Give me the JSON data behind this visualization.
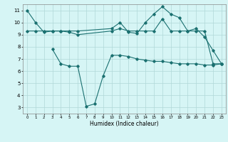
{
  "title": "",
  "xlabel": "Humidex (Indice chaleur)",
  "bg_color": "#d6f5f5",
  "grid_color": "#b0d8d8",
  "line_color": "#1a7070",
  "xlim": [
    -0.5,
    23.5
  ],
  "ylim": [
    2.5,
    11.5
  ],
  "xticks": [
    0,
    1,
    2,
    3,
    4,
    5,
    6,
    7,
    8,
    9,
    10,
    11,
    12,
    13,
    14,
    15,
    16,
    17,
    18,
    19,
    20,
    21,
    22,
    23
  ],
  "yticks": [
    3,
    4,
    5,
    6,
    7,
    8,
    9,
    10,
    11
  ],
  "series": [
    {
      "x": [
        0,
        1,
        2,
        3,
        4,
        5,
        6,
        10,
        11,
        12,
        13,
        14,
        15,
        16,
        17,
        18,
        19,
        20,
        21,
        22,
        23
      ],
      "y": [
        11,
        10,
        9.2,
        9.3,
        9.3,
        9.3,
        9.3,
        9.5,
        10.0,
        9.2,
        9.1,
        10.0,
        10.7,
        11.3,
        10.7,
        10.4,
        9.3,
        9.5,
        8.8,
        7.7,
        6.6
      ]
    },
    {
      "x": [
        0,
        1,
        2,
        3,
        4,
        5,
        6,
        10,
        11,
        12,
        13,
        14,
        15,
        16,
        17,
        18,
        19,
        20,
        21,
        22,
        23
      ],
      "y": [
        9.3,
        9.3,
        9.3,
        9.3,
        9.3,
        9.2,
        9.0,
        9.3,
        9.5,
        9.3,
        9.3,
        9.3,
        9.3,
        10.3,
        9.3,
        9.3,
        9.3,
        9.3,
        9.3,
        6.6,
        6.6
      ]
    },
    {
      "x": [
        3,
        4,
        5,
        6,
        7,
        8,
        9,
        10,
        11,
        12,
        13,
        14,
        15,
        16,
        17,
        18,
        19,
        20,
        21,
        22,
        23
      ],
      "y": [
        7.8,
        6.6,
        6.4,
        6.4,
        3.1,
        3.3,
        5.6,
        7.3,
        7.3,
        7.2,
        7.0,
        6.9,
        6.8,
        6.8,
        6.7,
        6.6,
        6.6,
        6.6,
        6.5,
        6.5,
        6.6
      ]
    }
  ]
}
